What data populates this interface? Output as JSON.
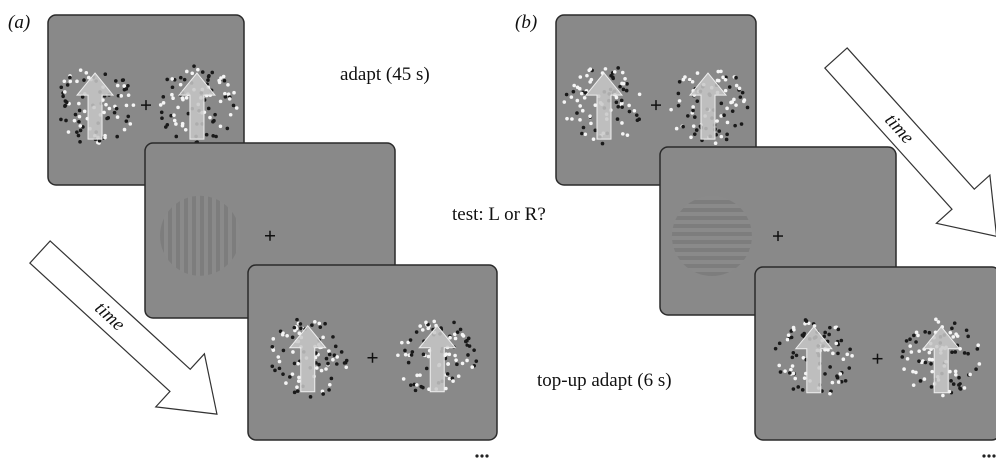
{
  "panels": [
    {
      "label": "(a)",
      "time": "time",
      "steps": [
        "adapt (45 s)",
        "test: L or R?",
        "top-up adapt (6 s)"
      ]
    },
    {
      "label": "(b)",
      "time": "time"
    }
  ]
}
